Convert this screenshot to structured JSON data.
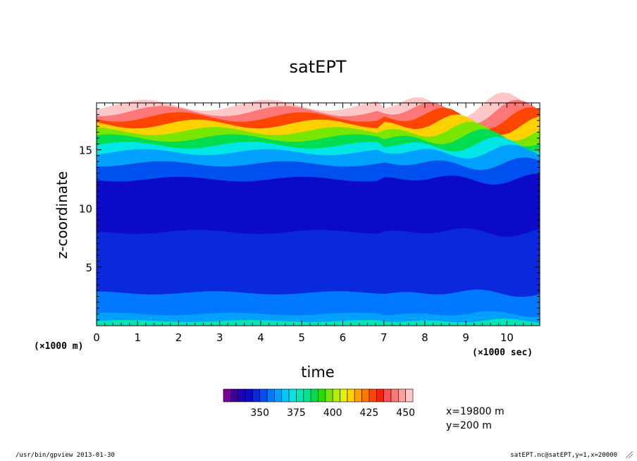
{
  "chart_data": {
    "type": "heatmap",
    "title": "satEPT",
    "xlabel": "time",
    "ylabel": "z-coordinate",
    "x_unit_note": "(×1000 sec)",
    "y_unit_note": "(×1000 m)",
    "xlim": [
      0,
      10.8
    ],
    "ylim": [
      0,
      19.0
    ],
    "x_ticks": [
      "0",
      "1",
      "2",
      "3",
      "4",
      "5",
      "6",
      "7",
      "8",
      "9",
      "10"
    ],
    "y_ticks": [
      "5",
      "10",
      "15"
    ],
    "colorbar": {
      "min": 325,
      "max": 455,
      "step": 5,
      "labels": [
        "350",
        "375",
        "400",
        "425",
        "450"
      ],
      "colors": [
        "#7a0096",
        "#3c0096",
        "#1e00b4",
        "#0a0ac8",
        "#0a28dc",
        "#0050f0",
        "#0078ff",
        "#00a0ff",
        "#00c8ff",
        "#00e6e6",
        "#00e6b4",
        "#00e68c",
        "#00dc50",
        "#28dc00",
        "#78e600",
        "#b4f000",
        "#e6f000",
        "#ffd200",
        "#ffa000",
        "#ff7800",
        "#ff4600",
        "#ff1e00",
        "#ff5050",
        "#ff7878",
        "#ffa0a0",
        "#ffc8c8"
      ]
    },
    "side_info": [
      "x=19800 m",
      "y=200 m"
    ],
    "bands": [
      {
        "z_top": 0.4,
        "value": 377
      },
      {
        "z_top": 1.0,
        "value": 363
      },
      {
        "z_top": 2.8,
        "value": 357
      },
      {
        "z_top": 8.0,
        "value": 345
      },
      {
        "z_top": 12.5,
        "value": 340
      },
      {
        "z_top": 13.8,
        "value": 350
      },
      {
        "z_top": 14.8,
        "value": 360
      },
      {
        "z_top": 15.4,
        "value": 372
      },
      {
        "z_top": 16.0,
        "value": 385
      },
      {
        "z_top": 16.6,
        "value": 398
      },
      {
        "z_top": 17.2,
        "value": 410
      },
      {
        "z_top": 17.8,
        "value": 425
      },
      {
        "z_top": 18.3,
        "value": 440
      },
      {
        "z_top": 18.8,
        "value": 452
      }
    ]
  },
  "footer": {
    "left": "/usr/bin/gpview  2013-01-30",
    "right": "satEPT.nc@satEPT,y=1,x=20000"
  }
}
